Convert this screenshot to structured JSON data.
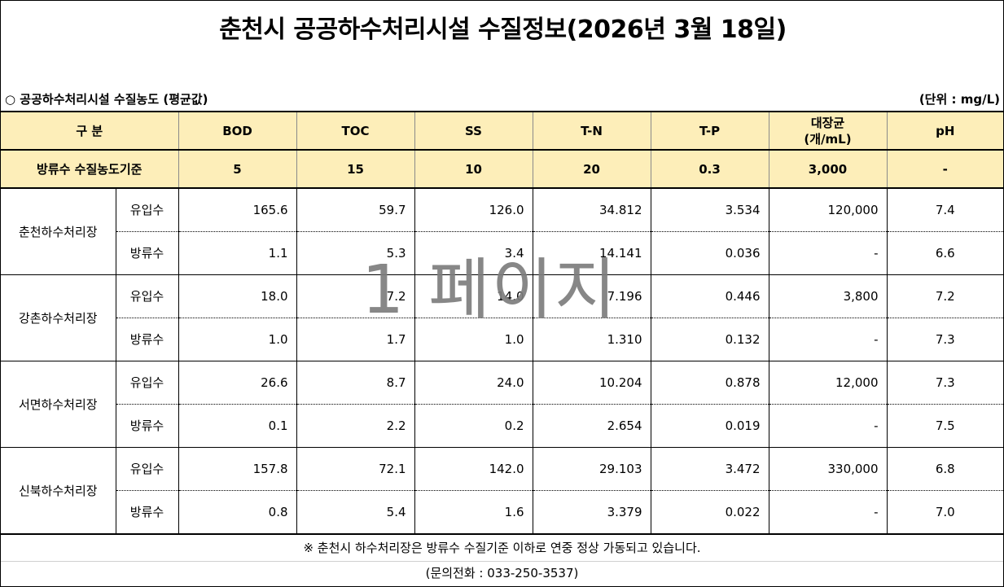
{
  "title": "춘천시 공공하수처리시설 수질정보(2026년 3월 18일)",
  "subheader": {
    "left_label": "○  공공하수처리시설 수질농도 (평균값)",
    "unit": "(단위 : mg/L)"
  },
  "table": {
    "headers": {
      "category": "구 분",
      "bod": "BOD",
      "toc": "TOC",
      "ss": "SS",
      "tn": "T-N",
      "tp": "T-P",
      "coliform_line1": "대장균",
      "coliform_line2": "(개/mL)",
      "ph": "pH"
    },
    "standard": {
      "label": "방류수 수질농도기준",
      "values": [
        "5",
        "15",
        "10",
        "20",
        "0.3",
        "3,000",
        "-"
      ]
    },
    "plants": [
      {
        "name": "춘천하수처리장",
        "rows": [
          {
            "kind": "유입수",
            "values": [
              "165.6",
              "59.7",
              "126.0",
              "34.812",
              "3.534",
              "120,000",
              "7.4"
            ]
          },
          {
            "kind": "방류수",
            "values": [
              "1.1",
              "5.3",
              "3.4",
              "14.141",
              "0.036",
              "-",
              "6.6"
            ]
          }
        ]
      },
      {
        "name": "강촌하수처리장",
        "rows": [
          {
            "kind": "유입수",
            "values": [
              "18.0",
              "7.2",
              "14.0",
              "7.196",
              "0.446",
              "3,800",
              "7.2"
            ]
          },
          {
            "kind": "방류수",
            "values": [
              "1.0",
              "1.7",
              "1.0",
              "1.310",
              "0.132",
              "-",
              "7.3"
            ]
          }
        ]
      },
      {
        "name": "서면하수처리장",
        "rows": [
          {
            "kind": "유입수",
            "values": [
              "26.6",
              "8.7",
              "24.0",
              "10.204",
              "0.878",
              "12,000",
              "7.3"
            ]
          },
          {
            "kind": "방류수",
            "values": [
              "0.1",
              "2.2",
              "0.2",
              "2.654",
              "0.019",
              "-",
              "7.5"
            ]
          }
        ]
      },
      {
        "name": "신북하수처리장",
        "rows": [
          {
            "kind": "유입수",
            "values": [
              "157.8",
              "72.1",
              "142.0",
              "29.103",
              "3.472",
              "330,000",
              "6.8"
            ]
          },
          {
            "kind": "방류수",
            "values": [
              "0.8",
              "5.4",
              "1.6",
              "3.379",
              "0.022",
              "-",
              "7.0"
            ]
          }
        ]
      }
    ]
  },
  "note": "※ 춘천시 하수처리장은 방류수 수질기준 이하로 연중 정상 가동되고 있습니다.",
  "contact": "(문의전화 : 033-250-3537)",
  "watermark": "1 페이지",
  "colors": {
    "header_bg": "#fdeeb9",
    "watermark": "#7d7d7d"
  }
}
